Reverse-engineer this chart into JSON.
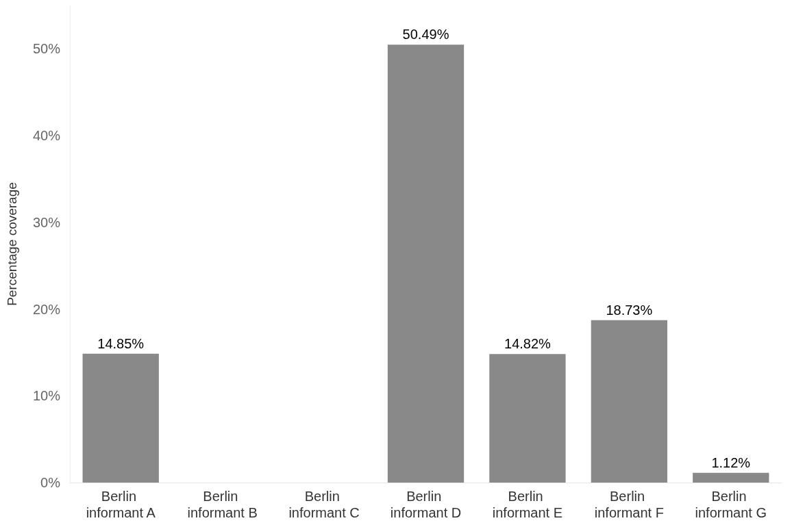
{
  "chart_data": {
    "type": "bar",
    "ylabel": "Percentage coverage",
    "categories": [
      "Berlin informant A",
      "Berlin informant B",
      "Berlin informant C",
      "Berlin informant D",
      "Berlin informant E",
      "Berlin informant F",
      "Berlin informant G"
    ],
    "values": [
      14.85,
      0,
      0,
      50.49,
      14.82,
      18.73,
      1.12
    ],
    "value_labels": [
      "14.85%",
      null,
      null,
      "50.49%",
      "14.82%",
      "18.73%",
      "1.12%"
    ],
    "color": "#898989",
    "ylim": [
      0,
      55
    ],
    "yticks": [
      {
        "value": 0,
        "label": "0%"
      },
      {
        "value": 10,
        "label": "10%"
      },
      {
        "value": 20,
        "label": "20%"
      },
      {
        "value": 30,
        "label": "30%"
      },
      {
        "value": 40,
        "label": "40%"
      },
      {
        "value": 50,
        "label": "50%"
      }
    ],
    "grid": false
  }
}
